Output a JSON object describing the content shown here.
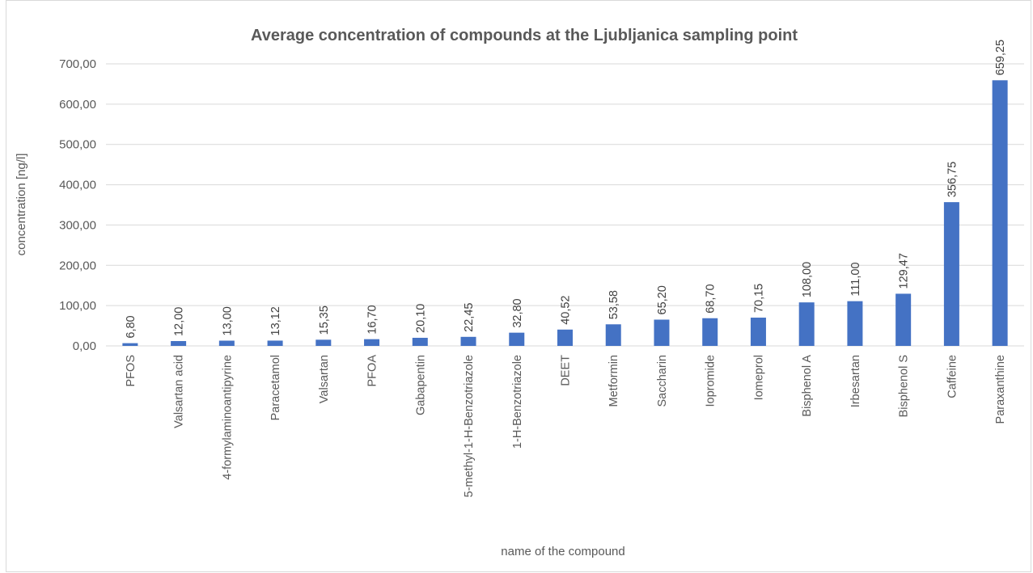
{
  "chart_data": {
    "type": "bar",
    "title": "Average concentration of compounds at the Ljubljanica sampling point",
    "xlabel": "name of the compound",
    "ylabel": "concentration [ng/l]",
    "ylim": [
      0,
      700
    ],
    "yticks": [
      "0,00",
      "100,00",
      "200,00",
      "300,00",
      "400,00",
      "500,00",
      "600,00",
      "700,00"
    ],
    "grid": true,
    "legend": "none",
    "bar_color": "#4472c4",
    "categories": [
      "PFOS",
      "Valsartan acid",
      "4-formylaminoantipyrine",
      "Paracetamol",
      "Valsartan",
      "PFOA",
      "Gabapentin",
      "5-methyl-1-H-Benzotriazole",
      "1-H-Benzotriazole",
      "DEET",
      "Metformin",
      "Saccharin",
      "Iopromide",
      "Iomeprol",
      "Bisphenol A",
      "Irbesartan",
      "Bisphenol S",
      "Caffeine",
      "Paraxanthine"
    ],
    "values": [
      6.8,
      12.0,
      13.0,
      13.12,
      15.35,
      16.7,
      20.1,
      22.45,
      32.8,
      40.52,
      53.58,
      65.2,
      68.7,
      70.15,
      108.0,
      111.0,
      129.47,
      356.75,
      659.25
    ],
    "data_labels": [
      "6,80",
      "12,00",
      "13,00",
      "13,12",
      "15,35",
      "16,70",
      "20,10",
      "22,45",
      "32,80",
      "40,52",
      "53,58",
      "65,20",
      "68,70",
      "70,15",
      "108,00",
      "111,00",
      "129,47",
      "356,75",
      "659,25"
    ]
  }
}
